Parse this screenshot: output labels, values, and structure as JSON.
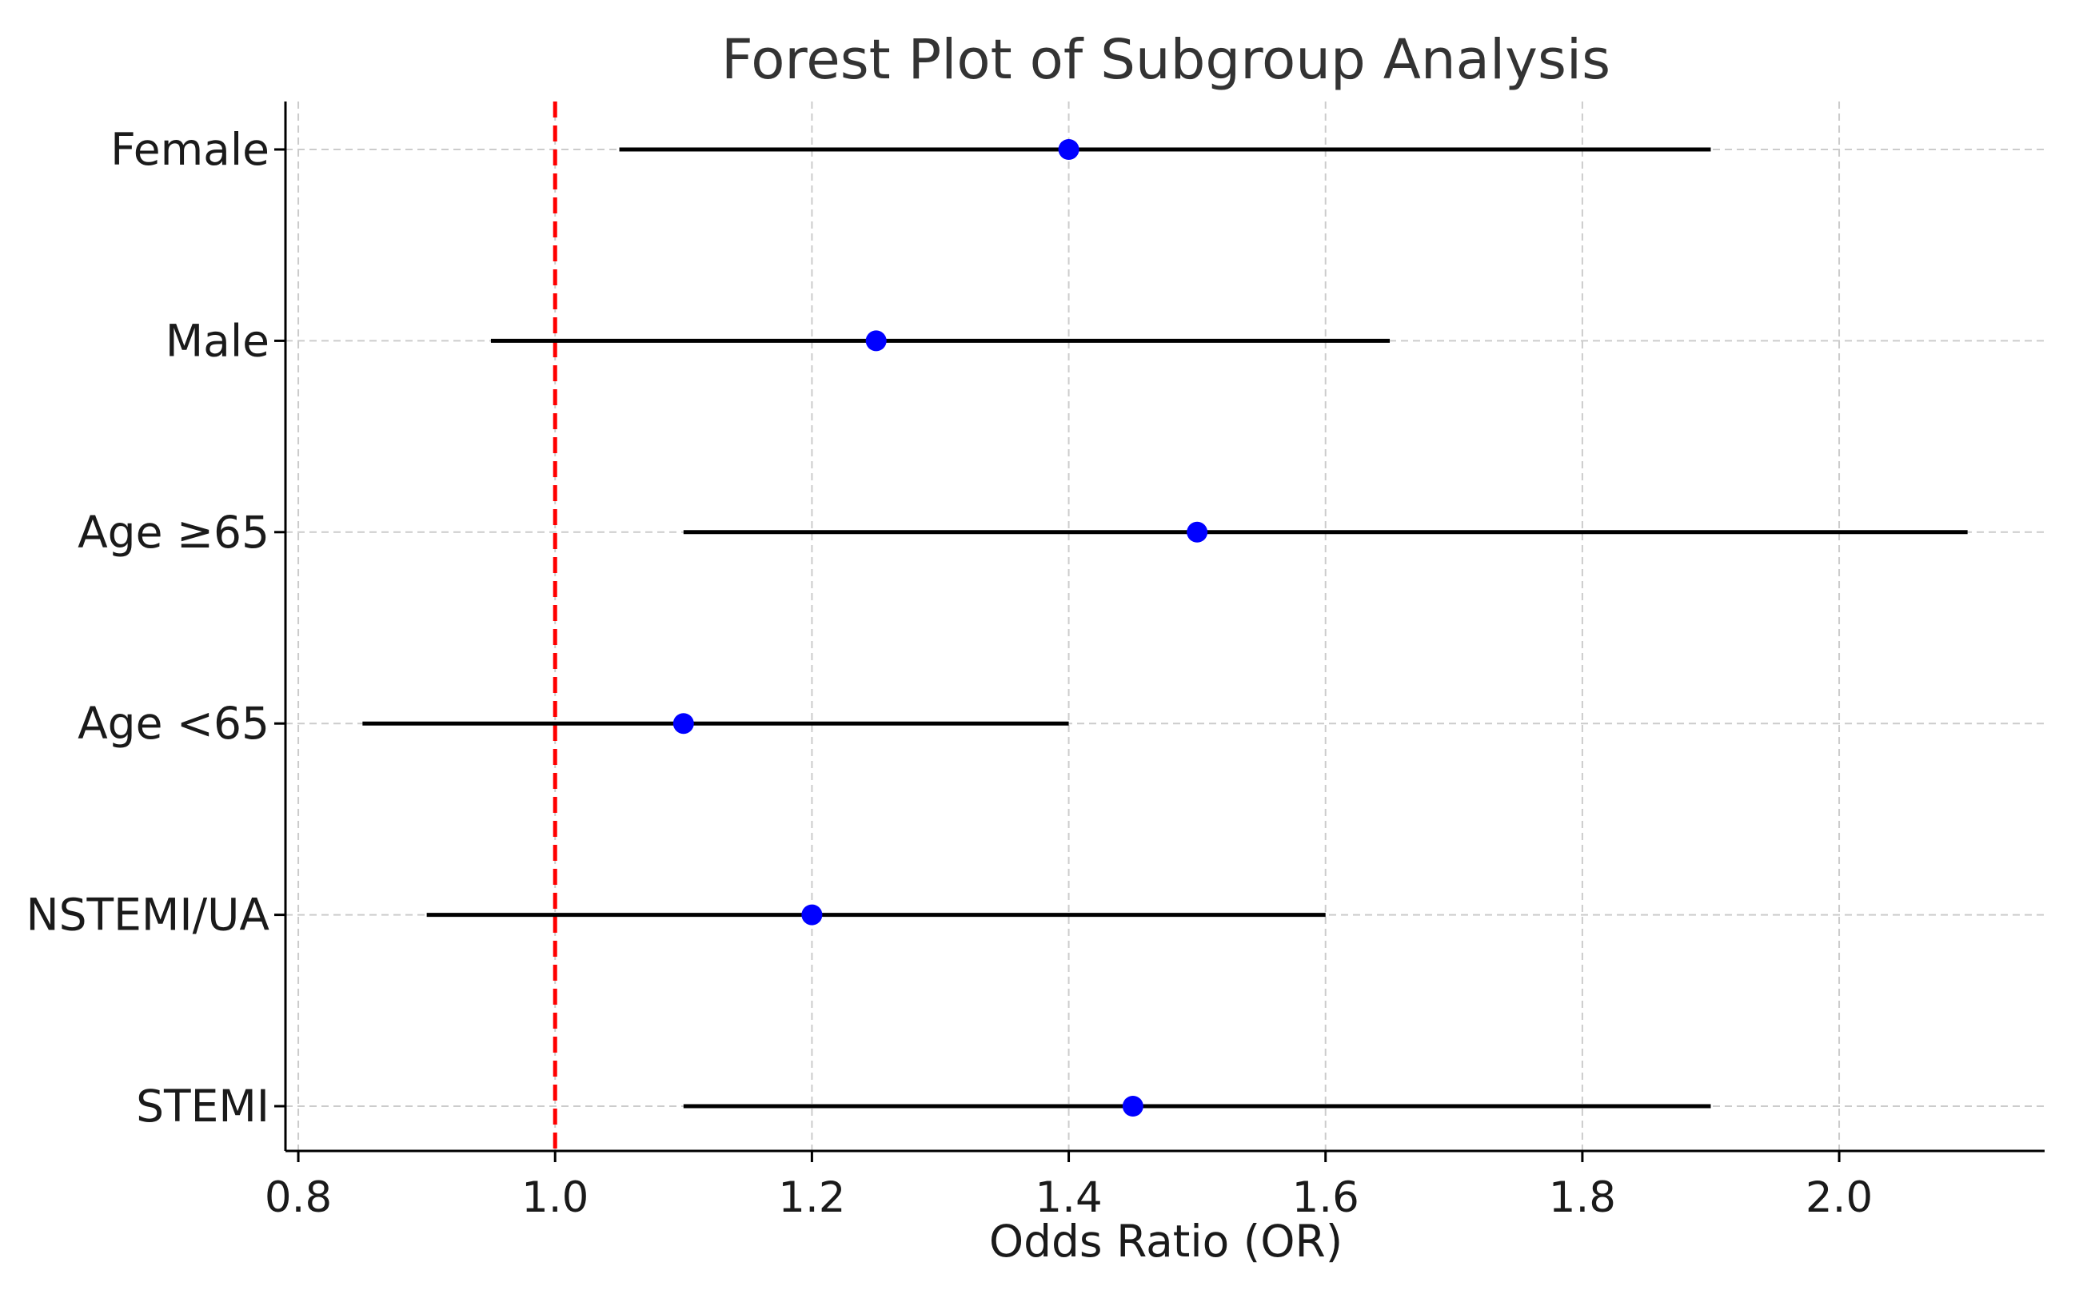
{
  "chart_data": {
    "type": "forest",
    "title": "Forest Plot of Subgroup Analysis",
    "xlabel": "Odds Ratio (OR)",
    "ylabel": "",
    "xlim": [
      0.79,
      2.16
    ],
    "xticks": [
      0.8,
      1.0,
      1.2,
      1.4,
      1.6,
      1.8,
      2.0
    ],
    "xtick_labels": [
      "0.8",
      "1.0",
      "1.2",
      "1.4",
      "1.6",
      "1.8",
      "2.0"
    ],
    "reference_line": 1.0,
    "grid": true,
    "subgroups": [
      {
        "label": "Female",
        "or": 1.4,
        "ci_low": 1.05,
        "ci_high": 1.9
      },
      {
        "label": "Male",
        "or": 1.25,
        "ci_low": 0.95,
        "ci_high": 1.65
      },
      {
        "label": "Age ≥65",
        "or": 1.5,
        "ci_low": 1.1,
        "ci_high": 2.1
      },
      {
        "label": "Age <65",
        "or": 1.1,
        "ci_low": 0.85,
        "ci_high": 1.4
      },
      {
        "label": "NSTEMI/UA",
        "or": 1.2,
        "ci_low": 0.9,
        "ci_high": 1.6
      },
      {
        "label": "STEMI",
        "or": 1.45,
        "ci_low": 1.1,
        "ci_high": 1.9
      }
    ],
    "colors": {
      "point": "#0000ff",
      "ci_line": "#000000",
      "reference": "#ff0000",
      "grid": "#cccccc",
      "axis": "#000000"
    }
  }
}
